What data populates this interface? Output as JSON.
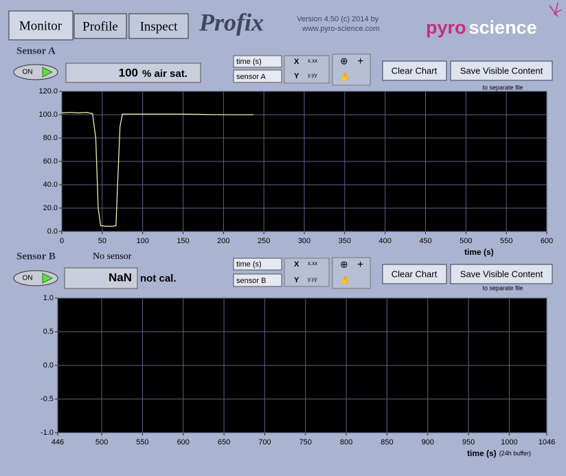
{
  "tabs": [
    "Monitor",
    "Profile",
    "Inspect"
  ],
  "app_title": "Profix",
  "version": "Version  4.50   (c) 2014 by",
  "website": "www.pyro-science.com",
  "logo": [
    "pyro",
    "science"
  ],
  "sensor_a": {
    "label": "Sensor A",
    "toggle": "ON",
    "reading": 100,
    "unit": "% air sat.",
    "x_control": "time (s)",
    "y_control": "sensor A",
    "x_format": "x.xx",
    "y_format": "y.yy",
    "clear_button": "Clear Chart",
    "save_button": "Save Visible Content",
    "save_note": "to separate file",
    "chart": {
      "type": "line",
      "x_label": "time (s)",
      "xlim": [
        0,
        600
      ],
      "xticks": [
        0,
        50,
        100,
        150,
        200,
        250,
        300,
        350,
        400,
        450,
        500,
        550,
        600
      ],
      "ylim": [
        0,
        120
      ],
      "yticks": [
        {
          "value": 0,
          "label": "0.0"
        },
        {
          "value": 20,
          "label": "20.0"
        },
        {
          "value": 40,
          "label": "40.0"
        },
        {
          "value": 60,
          "label": "60.0"
        },
        {
          "value": 80,
          "label": "80.0"
        },
        {
          "value": 100,
          "label": "100.0"
        },
        {
          "value": 120,
          "label": "120.0"
        }
      ],
      "grid": true,
      "series": [
        {
          "color": "#f2f0a8",
          "x": [
            0,
            10,
            20,
            30,
            38,
            42,
            45,
            48,
            55,
            62,
            67,
            69,
            72,
            75,
            80,
            100,
            150,
            200,
            237
          ],
          "values": [
            101.5,
            102,
            101.5,
            102,
            101,
            80,
            20,
            5,
            4.5,
            4.5,
            5,
            40,
            90,
            100.5,
            100.5,
            100.5,
            100.5,
            100,
            100
          ]
        }
      ]
    }
  },
  "sensor_b": {
    "label": "Sensor B",
    "status": "No sensor",
    "toggle": "ON",
    "reading": "NaN",
    "unit": "not cal.",
    "x_control": "time (s)",
    "y_control": "sensor B",
    "x_format": "x.xx",
    "y_format": "y.yy",
    "clear_button": "Clear Chart",
    "save_button": "Save Visible Content",
    "save_note": "to separate file",
    "chart": {
      "type": "line",
      "x_label": "time (s)",
      "x_label_note": "(24h buffer)",
      "xlim": [
        446,
        1046
      ],
      "xticks": [
        446,
        500,
        550,
        600,
        650,
        700,
        750,
        800,
        850,
        900,
        950,
        1000,
        1046
      ],
      "ylim": [
        -1,
        1
      ],
      "yticks": [
        {
          "value": -1,
          "label": "-1.0"
        },
        {
          "value": -0.5,
          "label": "-0.5"
        },
        {
          "value": 0,
          "label": "0.0"
        },
        {
          "value": 0.5,
          "label": "0.5"
        },
        {
          "value": 1,
          "label": "1.0"
        }
      ],
      "grid": true,
      "series": []
    }
  }
}
